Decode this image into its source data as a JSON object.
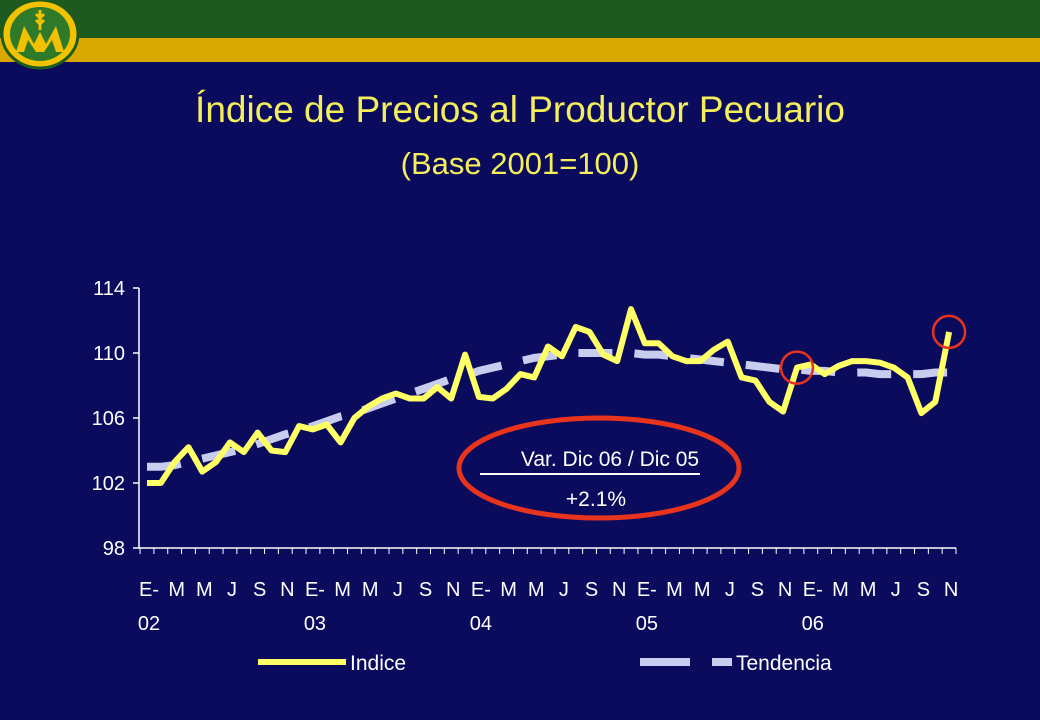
{
  "header": {
    "logo_icon": "m-wheat-logo-icon",
    "colors": {
      "green_band": "#1d5a1f",
      "gold_band": "#d6a800",
      "background": "#0b0b5e"
    }
  },
  "title": "Índice de Precios al Productor Pecuario",
  "subtitle": "(Base 2001=100)",
  "annotation": {
    "label": "Var. Dic 06 / Dic 05",
    "value": "+2.1%",
    "ellipse_color": "#e8341c"
  },
  "chart_data": {
    "type": "line",
    "title": "Índice de Precios al Productor Pecuario",
    "subtitle": "(Base 2001=100)",
    "ylim": [
      98,
      114
    ],
    "yticks": [
      98,
      102,
      106,
      110,
      114
    ],
    "x_labels": [
      "E-",
      "M",
      "M",
      "J",
      "S",
      "N",
      "E-",
      "M",
      "M",
      "J",
      "S",
      "N",
      "E-",
      "M",
      "M",
      "J",
      "S",
      "N",
      "E-",
      "M",
      "M",
      "J",
      "S",
      "N",
      "E-",
      "M",
      "M",
      "J",
      "S",
      "N"
    ],
    "x_label_months": [
      0,
      2,
      4,
      6,
      8,
      10,
      12,
      14,
      16,
      18,
      20,
      22,
      24,
      26,
      28,
      30,
      32,
      34,
      36,
      38,
      40,
      42,
      44,
      46,
      48,
      50,
      52,
      54,
      56,
      58
    ],
    "year_labels": [
      "02",
      "03",
      "04",
      "05",
      "06"
    ],
    "year_label_months": [
      0,
      12,
      24,
      36,
      48
    ],
    "series": [
      {
        "name": "Indice",
        "color": "#ffff66",
        "style": "solid",
        "values": [
          102.0,
          102.0,
          103.3,
          104.2,
          102.7,
          103.3,
          104.5,
          103.9,
          105.1,
          104.0,
          103.9,
          105.5,
          105.3,
          105.6,
          104.5,
          106.0,
          106.7,
          107.2,
          107.5,
          107.2,
          107.2,
          107.9,
          107.2,
          109.9,
          107.3,
          107.2,
          107.8,
          108.7,
          108.5,
          110.4,
          109.8,
          111.6,
          111.3,
          109.9,
          109.5,
          112.7,
          110.6,
          110.6,
          109.8,
          109.5,
          109.5,
          110.2,
          110.7,
          108.5,
          108.3,
          107.0,
          106.4,
          109.1,
          109.3,
          108.7,
          109.2,
          109.5,
          109.5,
          109.4,
          109.1,
          108.5,
          106.3,
          107.0,
          111.3
        ]
      },
      {
        "name": "Tendencia",
        "color": "#c8cdf0",
        "style": "dashed",
        "values": [
          103.0,
          103.0,
          103.1,
          103.3,
          103.5,
          103.7,
          103.9,
          104.1,
          104.4,
          104.7,
          105.0,
          105.2,
          105.5,
          105.8,
          106.1,
          106.3,
          106.6,
          106.9,
          107.2,
          107.5,
          107.8,
          108.1,
          108.4,
          108.6,
          108.9,
          109.1,
          109.3,
          109.5,
          109.7,
          109.8,
          109.9,
          110.0,
          110.0,
          110.0,
          110.0,
          110.0,
          109.9,
          109.9,
          109.8,
          109.7,
          109.6,
          109.5,
          109.4,
          109.3,
          109.2,
          109.1,
          109.0,
          109.0,
          108.9,
          108.9,
          108.8,
          108.8,
          108.8,
          108.7,
          108.7,
          108.7,
          108.7,
          108.8,
          108.8
        ]
      }
    ],
    "highlight_points": [
      47,
      58
    ],
    "highlight_color": "#e8341c",
    "legend": {
      "position": "bottom"
    },
    "grid": false
  }
}
